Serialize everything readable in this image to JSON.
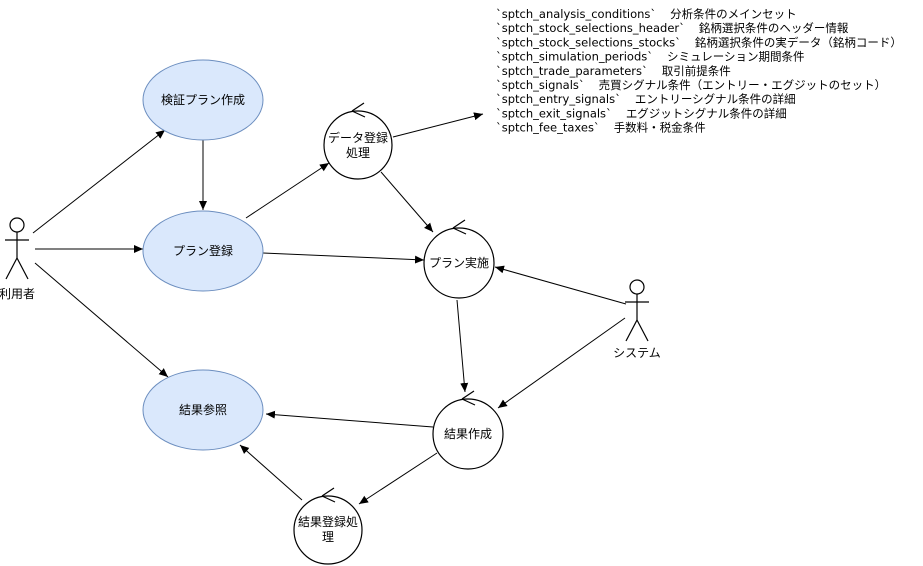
{
  "actors": {
    "user": "利用者",
    "system": "システム"
  },
  "usecases": {
    "plan_create": "検証プラン作成",
    "plan_register": "プラン登録",
    "result_view": "結果参照"
  },
  "controls": {
    "data_register": [
      "データ登録",
      "処理"
    ],
    "plan_execute": "プラン実施",
    "result_create": "結果作成",
    "result_register": [
      "結果登録処",
      "理"
    ]
  },
  "tables": [
    {
      "name": "`sptch_analysis_conditions`",
      "desc": "分析条件のメインセット"
    },
    {
      "name": "`sptch_stock_selections_header`",
      "desc": "銘柄選択条件のヘッダー情報"
    },
    {
      "name": "`sptch_stock_selections_stocks`",
      "desc": "銘柄選択条件の実データ（銘柄コード）"
    },
    {
      "name": "`sptch_simulation_periods`",
      "desc": "シミュレーション期間条件"
    },
    {
      "name": "`sptch_trade_parameters`",
      "desc": "取引前提条件"
    },
    {
      "name": "`sptch_signals`",
      "desc": "売買シグナル条件（エントリー・エグジットのセット）"
    },
    {
      "name": "`sptch_entry_signals`",
      "desc": "エントリーシグナル条件の詳細"
    },
    {
      "name": "`sptch_exit_signals`",
      "desc": "エグジットシグナル条件の詳細"
    },
    {
      "name": "`sptch_fee_taxes`",
      "desc": "手数料・税金条件"
    }
  ]
}
